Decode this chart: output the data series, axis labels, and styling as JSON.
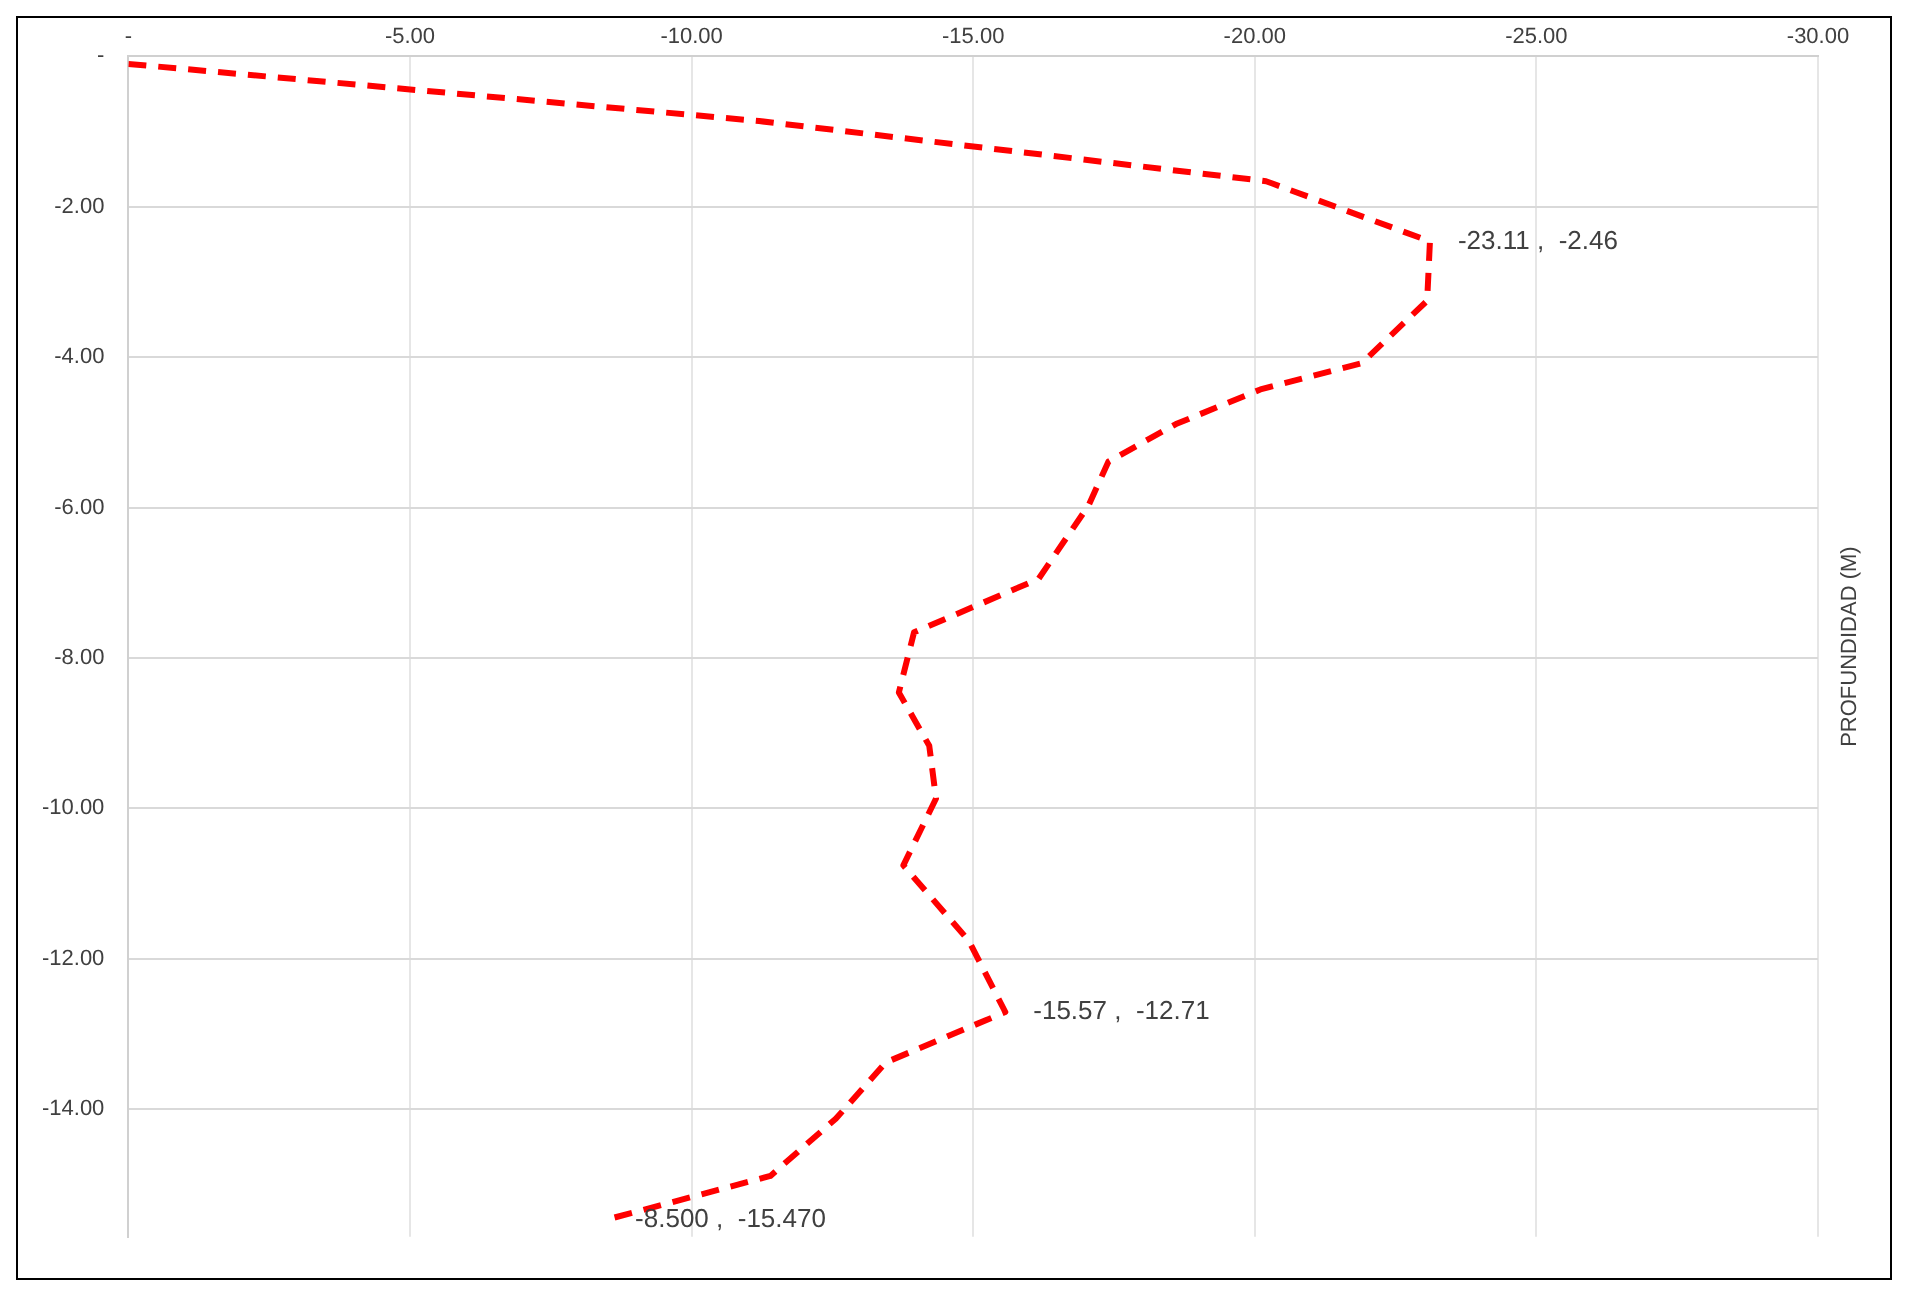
{
  "chart_data": {
    "type": "line",
    "ylabel": "PROFUNDIDAD (M)",
    "series": [
      {
        "color": "#ff0000",
        "x": [
          0,
          -11.2,
          -20.2,
          -23.11,
          -23.06,
          -21.9,
          -20.1,
          -18.6,
          -17.4,
          -17.05,
          -16.16,
          -13.95,
          -13.68,
          -14.22,
          -14.34,
          -13.76,
          -14.92,
          -15.57,
          -13.45,
          -12.56,
          -11.4,
          -8.5
        ],
        "values": [
          -0.1,
          -0.86,
          -1.66,
          -2.46,
          -3.25,
          -4.08,
          -4.43,
          -4.89,
          -5.39,
          -5.97,
          -6.95,
          -7.66,
          -8.46,
          -9.17,
          -9.87,
          -10.76,
          -11.76,
          -12.71,
          -13.38,
          -14.13,
          -14.89,
          -15.47
        ]
      }
    ],
    "xlim": [
      0,
      -30
    ],
    "xticks": [
      {
        "value": 0,
        "label": "-"
      },
      {
        "value": -5,
        "label": "-5.00"
      },
      {
        "value": -10,
        "label": "-10.00"
      },
      {
        "value": -15,
        "label": "-15.00"
      },
      {
        "value": -20,
        "label": "-20.00"
      },
      {
        "value": -25,
        "label": "-25.00"
      },
      {
        "value": -30,
        "label": "-30.00"
      }
    ],
    "ylim": [
      -15.7,
      0
    ],
    "yticks": [
      {
        "value": 0,
        "label": "-"
      },
      {
        "value": -2,
        "label": "-2.00"
      },
      {
        "value": -4,
        "label": "-4.00"
      },
      {
        "value": -6,
        "label": "-6.00"
      },
      {
        "value": -8,
        "label": "-8.00"
      },
      {
        "value": -10,
        "label": "-10.00"
      },
      {
        "value": -12,
        "label": "-12.00"
      },
      {
        "value": -14,
        "label": "-14.00"
      }
    ],
    "grid": true,
    "legend": false,
    "marker": "none",
    "line_style": "dashed",
    "annotations": [
      {
        "text": "-23.11 ,  -2.46",
        "x": -23.11,
        "y": -2.46
      },
      {
        "text": "-15.57 ,  -12.71",
        "x": -15.57,
        "y": -12.71
      },
      {
        "text": "-8.500 ,  -15.470",
        "x": -8.5,
        "y": -15.47
      }
    ]
  }
}
